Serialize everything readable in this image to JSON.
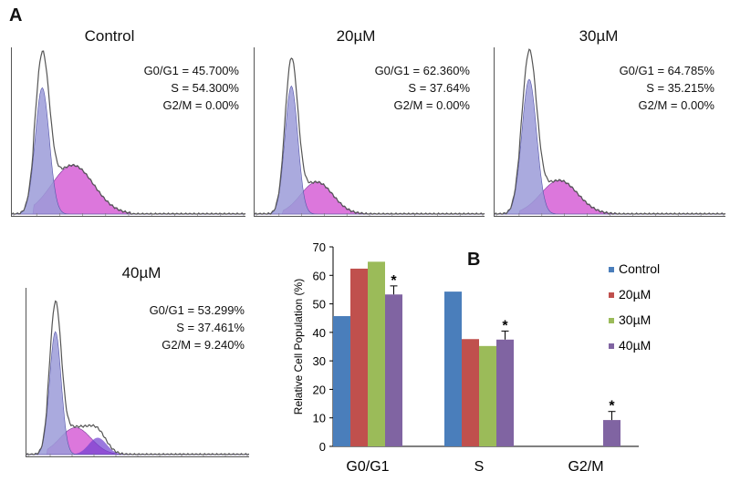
{
  "panels": {
    "a": "A",
    "b": "B"
  },
  "histograms": [
    {
      "title": "Control",
      "g0g1": "G0/G1 = 45.700%",
      "s": "S = 54.300%",
      "g2m": "G2/M = 0.00%"
    },
    {
      "title": "20µM",
      "g0g1": "G0/G1 = 62.360%",
      "s": "S = 37.64%",
      "g2m": "G2/M = 0.00%"
    },
    {
      "title": "30µM",
      "g0g1": "G0/G1 = 64.785%",
      "s": "S = 35.215%",
      "g2m": "G2/M = 0.00%"
    },
    {
      "title": "40µM",
      "g0g1": "G0/G1 = 53.299%",
      "s": "S = 37.461%",
      "g2m": "G2/M = 9.240%"
    }
  ],
  "colors": {
    "control": "#4a7ebb",
    "um20": "#c0504d",
    "um30": "#9bbb59",
    "um40": "#8064a2",
    "g1_fill": "#9b9bd8",
    "s_fill": "#d65fd6",
    "g2_fill": "#6f3fd0",
    "trace": "#555555"
  },
  "chart_data": {
    "type": "bar",
    "categories": [
      "G0/G1",
      "S",
      "G2/M"
    ],
    "series": [
      {
        "name": "Control",
        "values": [
          45.7,
          54.3,
          0
        ]
      },
      {
        "name": "20µM",
        "values": [
          62.36,
          37.64,
          0
        ]
      },
      {
        "name": "30µM",
        "values": [
          64.785,
          35.215,
          0
        ]
      },
      {
        "name": "40µM",
        "values": [
          53.299,
          37.461,
          9.24
        ]
      }
    ],
    "error_bars": {
      "series": "40µM",
      "values": [
        3,
        3,
        3
      ]
    },
    "annotations": [
      {
        "series": "40µM",
        "category": "G0/G1",
        "text": "*"
      },
      {
        "series": "40µM",
        "category": "S",
        "text": "*"
      },
      {
        "series": "40µM",
        "category": "G2/M",
        "text": "*"
      }
    ],
    "ylabel": "Relative Cell Population (%)",
    "xlabel": "",
    "ylim": [
      0,
      70
    ],
    "yticks": [
      0,
      10,
      20,
      30,
      40,
      50,
      60,
      70
    ],
    "legend": "right",
    "grid": false
  }
}
